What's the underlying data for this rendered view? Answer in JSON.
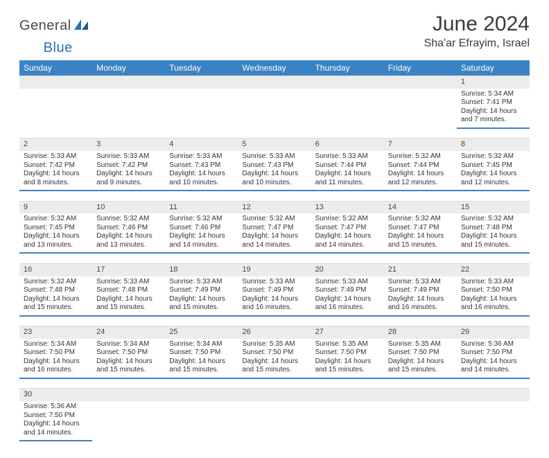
{
  "logo": {
    "text1": "General",
    "text2": "Blue"
  },
  "title": "June 2024",
  "location": "Sha'ar Efrayim, Israel",
  "colors": {
    "header_bg": "#3b82c4",
    "header_text": "#ffffff",
    "daynum_bg": "#ececec",
    "row_divider": "#3b82c4",
    "page_bg": "#ffffff",
    "logo_gray": "#4a4a4a",
    "logo_blue": "#2a6fb5"
  },
  "weekdays": [
    "Sunday",
    "Monday",
    "Tuesday",
    "Wednesday",
    "Thursday",
    "Friday",
    "Saturday"
  ],
  "weeks": [
    {
      "nums": [
        "",
        "",
        "",
        "",
        "",
        "",
        "1"
      ],
      "cells": [
        null,
        null,
        null,
        null,
        null,
        null,
        {
          "sunrise": "5:34 AM",
          "sunset": "7:41 PM",
          "daylight": "14 hours and 7 minutes."
        }
      ]
    },
    {
      "nums": [
        "2",
        "3",
        "4",
        "5",
        "6",
        "7",
        "8"
      ],
      "cells": [
        {
          "sunrise": "5:33 AM",
          "sunset": "7:42 PM",
          "daylight": "14 hours and 8 minutes."
        },
        {
          "sunrise": "5:33 AM",
          "sunset": "7:42 PM",
          "daylight": "14 hours and 9 minutes."
        },
        {
          "sunrise": "5:33 AM",
          "sunset": "7:43 PM",
          "daylight": "14 hours and 10 minutes."
        },
        {
          "sunrise": "5:33 AM",
          "sunset": "7:43 PM",
          "daylight": "14 hours and 10 minutes."
        },
        {
          "sunrise": "5:33 AM",
          "sunset": "7:44 PM",
          "daylight": "14 hours and 11 minutes."
        },
        {
          "sunrise": "5:32 AM",
          "sunset": "7:44 PM",
          "daylight": "14 hours and 12 minutes."
        },
        {
          "sunrise": "5:32 AM",
          "sunset": "7:45 PM",
          "daylight": "14 hours and 12 minutes."
        }
      ]
    },
    {
      "nums": [
        "9",
        "10",
        "11",
        "12",
        "13",
        "14",
        "15"
      ],
      "cells": [
        {
          "sunrise": "5:32 AM",
          "sunset": "7:45 PM",
          "daylight": "14 hours and 13 minutes."
        },
        {
          "sunrise": "5:32 AM",
          "sunset": "7:46 PM",
          "daylight": "14 hours and 13 minutes."
        },
        {
          "sunrise": "5:32 AM",
          "sunset": "7:46 PM",
          "daylight": "14 hours and 14 minutes."
        },
        {
          "sunrise": "5:32 AM",
          "sunset": "7:47 PM",
          "daylight": "14 hours and 14 minutes."
        },
        {
          "sunrise": "5:32 AM",
          "sunset": "7:47 PM",
          "daylight": "14 hours and 14 minutes."
        },
        {
          "sunrise": "5:32 AM",
          "sunset": "7:47 PM",
          "daylight": "14 hours and 15 minutes."
        },
        {
          "sunrise": "5:32 AM",
          "sunset": "7:48 PM",
          "daylight": "14 hours and 15 minutes."
        }
      ]
    },
    {
      "nums": [
        "16",
        "17",
        "18",
        "19",
        "20",
        "21",
        "22"
      ],
      "cells": [
        {
          "sunrise": "5:32 AM",
          "sunset": "7:48 PM",
          "daylight": "14 hours and 15 minutes."
        },
        {
          "sunrise": "5:33 AM",
          "sunset": "7:48 PM",
          "daylight": "14 hours and 15 minutes."
        },
        {
          "sunrise": "5:33 AM",
          "sunset": "7:49 PM",
          "daylight": "14 hours and 15 minutes."
        },
        {
          "sunrise": "5:33 AM",
          "sunset": "7:49 PM",
          "daylight": "14 hours and 16 minutes."
        },
        {
          "sunrise": "5:33 AM",
          "sunset": "7:49 PM",
          "daylight": "14 hours and 16 minutes."
        },
        {
          "sunrise": "5:33 AM",
          "sunset": "7:49 PM",
          "daylight": "14 hours and 16 minutes."
        },
        {
          "sunrise": "5:33 AM",
          "sunset": "7:50 PM",
          "daylight": "14 hours and 16 minutes."
        }
      ]
    },
    {
      "nums": [
        "23",
        "24",
        "25",
        "26",
        "27",
        "28",
        "29"
      ],
      "cells": [
        {
          "sunrise": "5:34 AM",
          "sunset": "7:50 PM",
          "daylight": "14 hours and 16 minutes."
        },
        {
          "sunrise": "5:34 AM",
          "sunset": "7:50 PM",
          "daylight": "14 hours and 15 minutes."
        },
        {
          "sunrise": "5:34 AM",
          "sunset": "7:50 PM",
          "daylight": "14 hours and 15 minutes."
        },
        {
          "sunrise": "5:35 AM",
          "sunset": "7:50 PM",
          "daylight": "14 hours and 15 minutes."
        },
        {
          "sunrise": "5:35 AM",
          "sunset": "7:50 PM",
          "daylight": "14 hours and 15 minutes."
        },
        {
          "sunrise": "5:35 AM",
          "sunset": "7:50 PM",
          "daylight": "14 hours and 15 minutes."
        },
        {
          "sunrise": "5:36 AM",
          "sunset": "7:50 PM",
          "daylight": "14 hours and 14 minutes."
        }
      ]
    },
    {
      "nums": [
        "30",
        "",
        "",
        "",
        "",
        "",
        ""
      ],
      "cells": [
        {
          "sunrise": "5:36 AM",
          "sunset": "7:50 PM",
          "daylight": "14 hours and 14 minutes."
        },
        null,
        null,
        null,
        null,
        null,
        null
      ]
    }
  ],
  "labels": {
    "sunrise": "Sunrise:",
    "sunset": "Sunset:",
    "daylight": "Daylight:"
  }
}
